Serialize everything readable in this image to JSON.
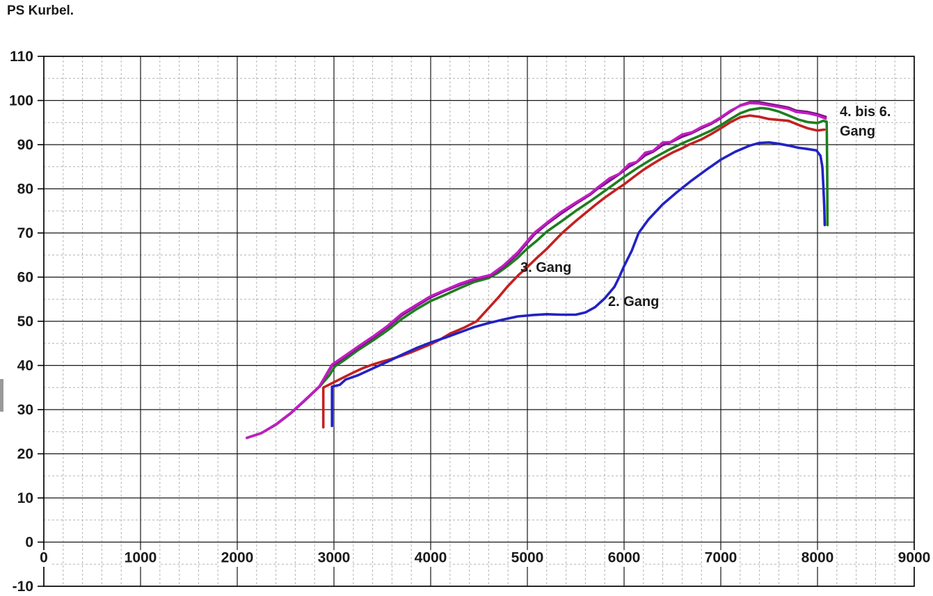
{
  "title": "PS Kurbel.",
  "colors": {
    "background": "#ffffff",
    "grid_major": "#161616",
    "grid_minor": "#b2b2b2",
    "border": "#000000",
    "text": "#1a1a1a"
  },
  "chart_data": {
    "type": "line",
    "title": "PS Kurbel.",
    "xlabel": "",
    "ylabel": "",
    "grid": {
      "major": "on",
      "minor": "dashed"
    },
    "legend_position": "inline-annotations",
    "x_axis": {
      "min": 0,
      "max": 9000,
      "major_step": 1000,
      "minor_step": 200,
      "tick_labels": [
        "0",
        "1000",
        "2000",
        "3000",
        "4000",
        "5000",
        "6000",
        "7000",
        "8000",
        "9000"
      ]
    },
    "y_axis": {
      "min": -10,
      "max": 110,
      "major_step": 10,
      "minor_step": 5,
      "tick_labels": [
        "-10",
        "0",
        "10",
        "20",
        "30",
        "40",
        "50",
        "60",
        "70",
        "80",
        "90",
        "100",
        "110"
      ]
    },
    "annotations": [
      {
        "id": "gang-2",
        "text": "2. Gang",
        "rpm": 5835,
        "ps": 56.6
      },
      {
        "id": "gang-3",
        "text": "3. Gang",
        "rpm": 4925,
        "ps": 64.3
      },
      {
        "id": "gang-4-6",
        "lines": [
          "4. bis 6.",
          "Gang"
        ],
        "rpm": 8230,
        "ps": 99.6
      }
    ],
    "series": [
      {
        "name": "3. Gang",
        "color": "#c42020",
        "width": 3.6,
        "points": [
          [
            2890,
            26
          ],
          [
            2890,
            35
          ],
          [
            3000,
            36.2
          ],
          [
            3100,
            37.3
          ],
          [
            3200,
            38.4
          ],
          [
            3300,
            39.4
          ],
          [
            3400,
            40.2
          ],
          [
            3500,
            40.9
          ],
          [
            3600,
            41.5
          ],
          [
            3700,
            42.2
          ],
          [
            3800,
            43.0
          ],
          [
            3900,
            43.9
          ],
          [
            4000,
            44.8
          ],
          [
            4100,
            45.9
          ],
          [
            4200,
            47.2
          ],
          [
            4350,
            48.6
          ],
          [
            4475,
            50.0
          ],
          [
            4600,
            53.0
          ],
          [
            4700,
            55.4
          ],
          [
            4800,
            58.0
          ],
          [
            4900,
            60.3
          ],
          [
            5000,
            62.3
          ],
          [
            5100,
            64.4
          ],
          [
            5200,
            66.4
          ],
          [
            5360,
            70.0
          ],
          [
            5500,
            72.7
          ],
          [
            5600,
            74.5
          ],
          [
            5700,
            76.3
          ],
          [
            5800,
            78.0
          ],
          [
            5930,
            80.0
          ],
          [
            6000,
            81.0
          ],
          [
            6100,
            82.7
          ],
          [
            6200,
            84.3
          ],
          [
            6300,
            85.7
          ],
          [
            6400,
            87.0
          ],
          [
            6500,
            88.2
          ],
          [
            6600,
            89.2
          ],
          [
            6670,
            90.0
          ],
          [
            6800,
            91.2
          ],
          [
            6900,
            92.4
          ],
          [
            7000,
            93.7
          ],
          [
            7100,
            95.1
          ],
          [
            7200,
            96.2
          ],
          [
            7300,
            96.6
          ],
          [
            7400,
            96.3
          ],
          [
            7500,
            95.8
          ],
          [
            7600,
            95.6
          ],
          [
            7700,
            95.4
          ],
          [
            7800,
            94.5
          ],
          [
            7900,
            93.7
          ],
          [
            8000,
            93.2
          ],
          [
            8070,
            93.4
          ]
        ]
      },
      {
        "name": "2. Gang",
        "color": "#2222c4",
        "width": 3.6,
        "points": [
          [
            2980,
            26.3
          ],
          [
            2980,
            35.2
          ],
          [
            3060,
            35.6
          ],
          [
            3120,
            36.8
          ],
          [
            3250,
            37.8
          ],
          [
            3400,
            39.3
          ],
          [
            3550,
            40.8
          ],
          [
            3700,
            42.4
          ],
          [
            3850,
            43.9
          ],
          [
            4000,
            45.2
          ],
          [
            4150,
            46.3
          ],
          [
            4300,
            47.5
          ],
          [
            4450,
            48.7
          ],
          [
            4600,
            49.6
          ],
          [
            4750,
            50.4
          ],
          [
            4900,
            51.1
          ],
          [
            5050,
            51.4
          ],
          [
            5200,
            51.6
          ],
          [
            5350,
            51.5
          ],
          [
            5500,
            51.5
          ],
          [
            5600,
            52.0
          ],
          [
            5700,
            53.2
          ],
          [
            5800,
            55.2
          ],
          [
            5900,
            57.8
          ],
          [
            5950,
            60.0
          ],
          [
            6000,
            62.5
          ],
          [
            6080,
            66.0
          ],
          [
            6150,
            70.0
          ],
          [
            6250,
            73.0
          ],
          [
            6400,
            76.5
          ],
          [
            6550,
            79.3
          ],
          [
            6700,
            81.9
          ],
          [
            6850,
            84.3
          ],
          [
            7000,
            86.6
          ],
          [
            7150,
            88.4
          ],
          [
            7300,
            89.8
          ],
          [
            7400,
            90.4
          ],
          [
            7500,
            90.5
          ],
          [
            7600,
            90.2
          ],
          [
            7700,
            89.8
          ],
          [
            7800,
            89.3
          ],
          [
            7900,
            89.0
          ],
          [
            7990,
            88.7
          ],
          [
            8030,
            87.5
          ],
          [
            8050,
            85.0
          ],
          [
            8060,
            81.0
          ],
          [
            8070,
            76.0
          ],
          [
            8075,
            71.8
          ]
        ]
      },
      {
        "name": "4. Gang",
        "color": "#1e7e1e",
        "width": 3.6,
        "points": [
          [
            2100,
            23.6
          ],
          [
            2250,
            24.7
          ],
          [
            2400,
            26.6
          ],
          [
            2550,
            29.1
          ],
          [
            2700,
            32.1
          ],
          [
            2850,
            35.2
          ],
          [
            2950,
            37.7
          ],
          [
            3010,
            39.8
          ],
          [
            3100,
            41.1
          ],
          [
            3250,
            43.5
          ],
          [
            3400,
            45.6
          ],
          [
            3550,
            47.9
          ],
          [
            3700,
            50.5
          ],
          [
            3850,
            52.7
          ],
          [
            4000,
            54.6
          ],
          [
            4150,
            56.0
          ],
          [
            4300,
            57.5
          ],
          [
            4450,
            58.9
          ],
          [
            4600,
            59.8
          ],
          [
            4700,
            61.0
          ],
          [
            4800,
            62.6
          ],
          [
            4900,
            64.4
          ],
          [
            5000,
            66.5
          ],
          [
            5100,
            68.3
          ],
          [
            5200,
            70.3
          ],
          [
            5350,
            72.6
          ],
          [
            5500,
            75.0
          ],
          [
            5650,
            77.2
          ],
          [
            5830,
            80.0
          ],
          [
            6000,
            82.7
          ],
          [
            6150,
            84.9
          ],
          [
            6300,
            86.9
          ],
          [
            6450,
            88.7
          ],
          [
            6600,
            90.3
          ],
          [
            6750,
            91.7
          ],
          [
            6900,
            93.2
          ],
          [
            7000,
            94.4
          ],
          [
            7100,
            95.8
          ],
          [
            7200,
            97.1
          ],
          [
            7300,
            97.9
          ],
          [
            7420,
            98.3
          ],
          [
            7500,
            98.1
          ],
          [
            7600,
            97.5
          ],
          [
            7700,
            96.6
          ],
          [
            7800,
            95.7
          ],
          [
            7900,
            95.1
          ],
          [
            8000,
            94.9
          ],
          [
            8060,
            95.4
          ],
          [
            8095,
            95.2
          ],
          [
            8100,
            85.0
          ],
          [
            8103,
            71.8
          ]
        ]
      },
      {
        "name": "6. Gang",
        "color": "#7a1486",
        "width": 3.4,
        "points": [
          [
            2100,
            23.6
          ],
          [
            2250,
            24.7
          ],
          [
            2400,
            26.6
          ],
          [
            2550,
            29.1
          ],
          [
            2700,
            32.1
          ],
          [
            2850,
            35.2
          ],
          [
            2980,
            39.9
          ],
          [
            3100,
            41.7
          ],
          [
            3250,
            44.0
          ],
          [
            3400,
            46.2
          ],
          [
            3550,
            48.6
          ],
          [
            3700,
            51.3
          ],
          [
            3850,
            53.4
          ],
          [
            4000,
            55.4
          ],
          [
            4150,
            56.9
          ],
          [
            4300,
            58.2
          ],
          [
            4450,
            59.4
          ],
          [
            4620,
            60.3
          ],
          [
            4750,
            62.3
          ],
          [
            4900,
            65.2
          ],
          [
            5070,
            69.6
          ],
          [
            5200,
            72.0
          ],
          [
            5350,
            74.4
          ],
          [
            5500,
            76.6
          ],
          [
            5650,
            78.7
          ],
          [
            5720,
            79.9
          ],
          [
            5850,
            81.8
          ],
          [
            5950,
            83.3
          ],
          [
            6050,
            85.0
          ],
          [
            6130,
            86.0
          ],
          [
            6220,
            87.6
          ],
          [
            6300,
            88.4
          ],
          [
            6400,
            89.9
          ],
          [
            6480,
            90.5
          ],
          [
            6600,
            91.8
          ],
          [
            6700,
            92.6
          ],
          [
            6800,
            93.7
          ],
          [
            6900,
            94.7
          ],
          [
            7000,
            96.0
          ],
          [
            7100,
            97.5
          ],
          [
            7200,
            98.9
          ],
          [
            7300,
            99.6
          ],
          [
            7400,
            99.6
          ],
          [
            7500,
            99.2
          ],
          [
            7600,
            98.8
          ],
          [
            7700,
            98.4
          ],
          [
            7780,
            97.7
          ],
          [
            7900,
            97.4
          ],
          [
            8000,
            96.9
          ],
          [
            8085,
            96.3
          ]
        ]
      },
      {
        "name": "5. Gang",
        "color": "#c21cc2",
        "width": 3.4,
        "points": [
          [
            2100,
            23.6
          ],
          [
            2250,
            24.7
          ],
          [
            2400,
            26.7
          ],
          [
            2550,
            29.2
          ],
          [
            2700,
            32.2
          ],
          [
            2850,
            35.3
          ],
          [
            2980,
            40.2
          ],
          [
            3100,
            42.0
          ],
          [
            3250,
            44.3
          ],
          [
            3400,
            46.5
          ],
          [
            3550,
            48.9
          ],
          [
            3700,
            51.7
          ],
          [
            3850,
            53.7
          ],
          [
            4000,
            55.7
          ],
          [
            4150,
            57.1
          ],
          [
            4300,
            58.5
          ],
          [
            4450,
            59.6
          ],
          [
            4620,
            60.5
          ],
          [
            4750,
            62.6
          ],
          [
            4900,
            65.6
          ],
          [
            5070,
            70.0
          ],
          [
            5200,
            72.3
          ],
          [
            5350,
            74.8
          ],
          [
            5500,
            76.9
          ],
          [
            5650,
            78.9
          ],
          [
            5720,
            80.2
          ],
          [
            5850,
            82.4
          ],
          [
            5950,
            83.4
          ],
          [
            6050,
            85.6
          ],
          [
            6130,
            86.1
          ],
          [
            6220,
            88.2
          ],
          [
            6300,
            88.6
          ],
          [
            6400,
            90.5
          ],
          [
            6480,
            90.6
          ],
          [
            6600,
            92.3
          ],
          [
            6700,
            92.8
          ],
          [
            6800,
            94.0
          ],
          [
            6900,
            94.9
          ],
          [
            7000,
            96.2
          ],
          [
            7100,
            97.7
          ],
          [
            7200,
            98.8
          ],
          [
            7300,
            99.4
          ],
          [
            7400,
            99.3
          ],
          [
            7500,
            98.9
          ],
          [
            7600,
            98.5
          ],
          [
            7700,
            98.1
          ],
          [
            7780,
            97.4
          ],
          [
            7900,
            97.1
          ],
          [
            8000,
            96.6
          ],
          [
            8085,
            95.9
          ]
        ]
      }
    ]
  }
}
